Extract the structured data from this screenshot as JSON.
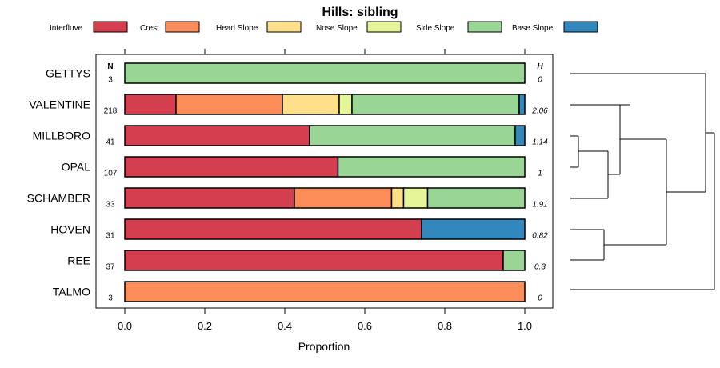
{
  "chart_data": {
    "type": "bar",
    "orientation": "horizontal-stacked",
    "title": "Hills: sibling",
    "xlabel": "Proportion",
    "ylabel": "",
    "xlim": [
      0,
      1
    ],
    "x_ticks": [
      "0.0",
      "0.2",
      "0.4",
      "0.6",
      "0.8",
      "1.0"
    ],
    "n_header": "N",
    "h_header": "H",
    "legend_position": "top",
    "legend": [
      {
        "name": "Interfluve",
        "color": "#D53E4F"
      },
      {
        "name": "Crest",
        "color": "#FC8D59"
      },
      {
        "name": "Head Slope",
        "color": "#FEE08B"
      },
      {
        "name": "Nose Slope",
        "color": "#E6F598"
      },
      {
        "name": "Side Slope",
        "color": "#99D594"
      },
      {
        "name": "Base Slope",
        "color": "#3288BD"
      }
    ],
    "categories": [
      "GETTYS",
      "VALENTINE",
      "MILLBORO",
      "OPAL",
      "SCHAMBER",
      "HOVEN",
      "REE",
      "TALMO"
    ],
    "n": [
      "3",
      "218",
      "41",
      "107",
      "33",
      "31",
      "37",
      "3"
    ],
    "h": [
      "0",
      "2.06",
      "1.14",
      "1",
      "1.91",
      "0.82",
      "0.3",
      "0"
    ],
    "series": [
      {
        "name": "Interfluve",
        "values": [
          0,
          0.128,
          0.462,
          0.533,
          0.424,
          0.742,
          0.946,
          0
        ]
      },
      {
        "name": "Crest",
        "values": [
          0,
          0.266,
          0,
          0,
          0.243,
          0,
          0,
          1
        ]
      },
      {
        "name": "Head Slope",
        "values": [
          0,
          0.142,
          0,
          0,
          0.03,
          0,
          0,
          0
        ]
      },
      {
        "name": "Nose Slope",
        "values": [
          0,
          0.032,
          0,
          0,
          0.06,
          0,
          0,
          0
        ]
      },
      {
        "name": "Side Slope",
        "values": [
          1,
          0.418,
          0.514,
          0.467,
          0.243,
          0,
          0.054,
          0
        ]
      },
      {
        "name": "Base Slope",
        "values": [
          0,
          0.014,
          0.024,
          0,
          0,
          0.258,
          0,
          0
        ]
      }
    ]
  }
}
